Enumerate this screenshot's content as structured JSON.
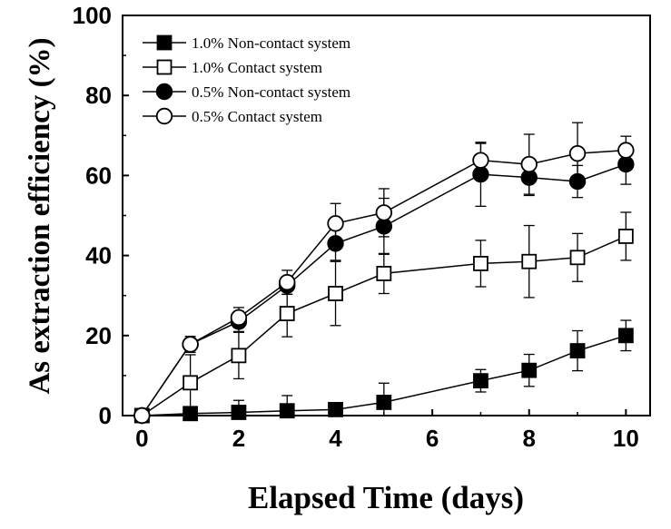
{
  "chart_data": {
    "type": "line",
    "xlabel": "Elapsed Time (days)",
    "ylabel": "As extraction efficiency (%)",
    "xlim": [
      -0.4,
      10.5
    ],
    "ylim": [
      0,
      100
    ],
    "xticks": [
      "0",
      "2",
      "4",
      "6",
      "8",
      "10"
    ],
    "yticks": [
      "0",
      "20",
      "40",
      "60",
      "80",
      "100"
    ],
    "legend_position": "top-left",
    "grid": false,
    "series": [
      {
        "name": "1.0% Non-contact system",
        "marker": "square-filled",
        "x": [
          0,
          1,
          2,
          3,
          4,
          5,
          7,
          8,
          9,
          10
        ],
        "y": [
          0,
          0.5,
          0.8,
          1.2,
          1.5,
          3.3,
          8.7,
          11.3,
          16.2,
          20.0
        ],
        "err": [
          0,
          1.0,
          3.0,
          3.8,
          0.7,
          4.8,
          2.8,
          4.0,
          5.0,
          3.8
        ]
      },
      {
        "name": "1.0% Contact system",
        "marker": "square-open",
        "x": [
          0,
          1,
          2,
          3,
          4,
          5,
          7,
          8,
          9,
          10
        ],
        "y": [
          0,
          8.2,
          15.0,
          25.5,
          30.5,
          35.5,
          38.0,
          38.5,
          39.5,
          44.8
        ],
        "err": [
          0,
          7.0,
          5.8,
          5.8,
          8.0,
          5.0,
          5.8,
          9.0,
          6.0,
          6.0
        ]
      },
      {
        "name": "0.5% Non-contact system",
        "marker": "circle-filled",
        "x": [
          0,
          1,
          2,
          3,
          4,
          5,
          7,
          8,
          9,
          10
        ],
        "y": [
          0,
          17.8,
          23.5,
          32.5,
          43.0,
          47.3,
          60.3,
          59.5,
          58.5,
          62.8
        ],
        "err": [
          0,
          1.5,
          2.5,
          2.2,
          4.2,
          7.0,
          8.0,
          4.5,
          4.0,
          5.0
        ]
      },
      {
        "name": "0.5% Contact system",
        "marker": "circle-open",
        "x": [
          0,
          1,
          2,
          3,
          4,
          5,
          7,
          8,
          9,
          10
        ],
        "y": [
          0,
          17.8,
          24.5,
          33.3,
          48.0,
          50.7,
          63.8,
          62.8,
          65.5,
          66.3
        ],
        "err": [
          0,
          2.0,
          2.5,
          3.0,
          5.0,
          6.0,
          4.2,
          7.5,
          7.7,
          3.5
        ]
      }
    ]
  }
}
